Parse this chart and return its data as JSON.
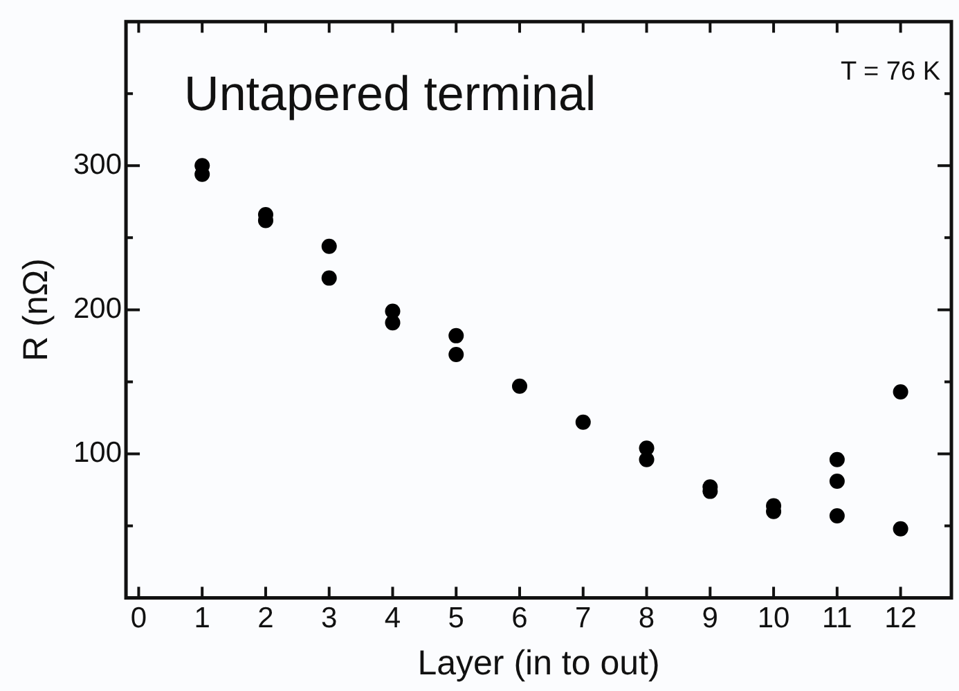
{
  "chart_data": {
    "type": "scatter",
    "xlabel": "Layer (in to out)",
    "ylabel": "R (nΩ)",
    "annotations": [
      "Untapered terminal",
      "T = 76 K"
    ],
    "x": [
      1,
      1,
      2,
      2,
      3,
      3,
      4,
      4,
      5,
      5,
      6,
      7,
      8,
      8,
      9,
      9,
      10,
      10,
      11,
      11,
      11,
      12,
      12
    ],
    "series": [
      {
        "color": "#000000",
        "values": [
          300,
          294,
          266,
          262,
          244,
          222,
          199,
          191,
          182,
          169,
          147,
          122,
          104,
          96,
          77,
          74,
          64,
          60,
          96,
          81,
          57,
          143,
          48
        ]
      }
    ],
    "xlim": [
      -0.2,
      12.8
    ],
    "xticks": [
      0,
      1,
      2,
      3,
      4,
      5,
      6,
      7,
      8,
      9,
      10,
      11,
      12
    ],
    "ylim": [
      0,
      400
    ],
    "yticks": [
      {
        "value": 50,
        "label": null
      },
      100,
      {
        "value": 150,
        "label": null
      },
      200,
      {
        "value": 250,
        "label": null
      },
      300,
      {
        "value": 350,
        "label": null
      }
    ],
    "grid": false,
    "legend": false,
    "marker": "circle"
  }
}
